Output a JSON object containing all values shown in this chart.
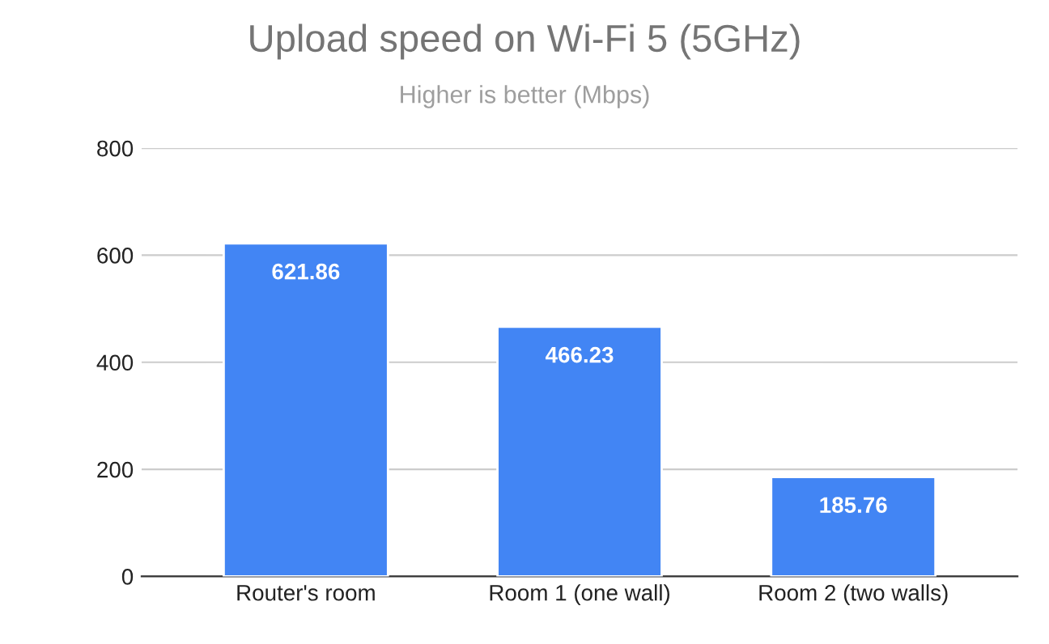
{
  "chart_data": {
    "type": "bar",
    "title": "Upload speed on Wi-Fi 5 (5GHz)",
    "subtitle": "Higher is better (Mbps)",
    "categories": [
      "Router's room",
      "Room 1 (one wall)",
      "Room 2 (two walls)"
    ],
    "values": [
      621.86,
      466.23,
      185.76
    ],
    "color": "#4285f4",
    "ylim": [
      0,
      800
    ],
    "yticks": [
      0,
      200,
      400,
      600,
      800
    ],
    "grid": "y",
    "data_labels": true,
    "legend": false
  }
}
